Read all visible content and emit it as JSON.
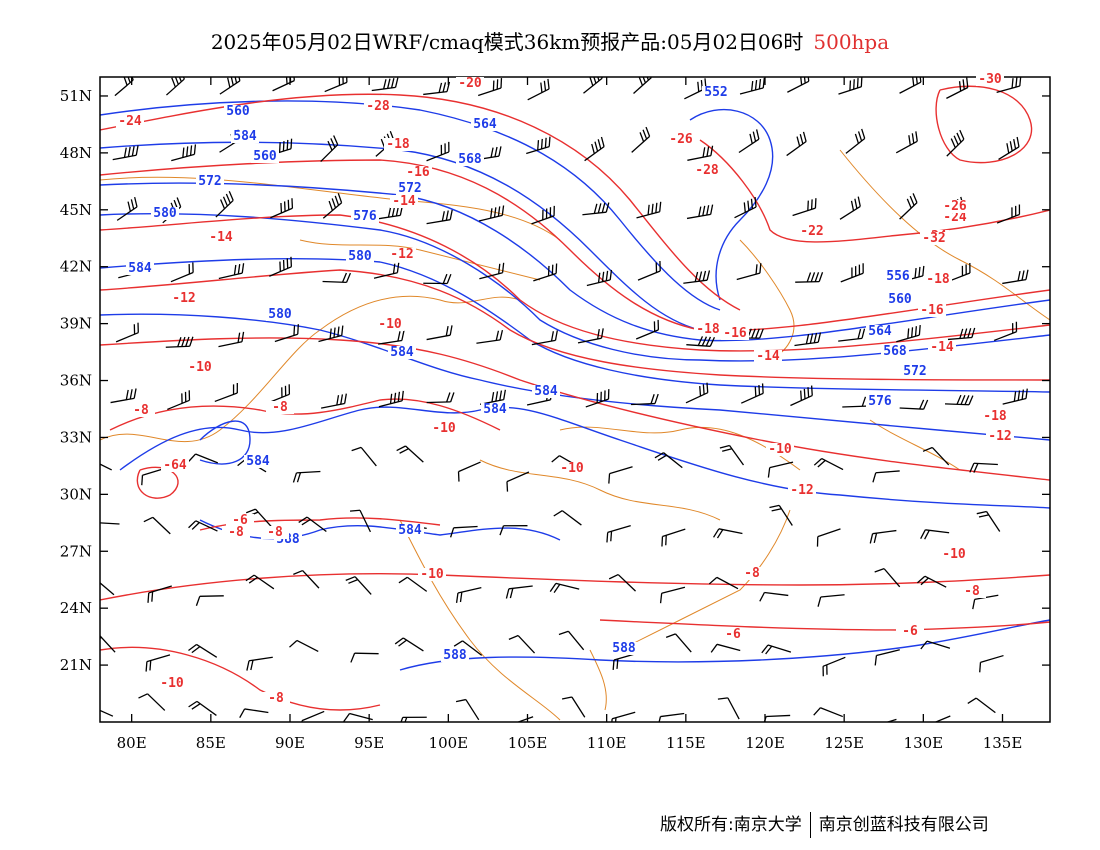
{
  "title": {
    "main": "2025年05月02日WRF/cmaq模式36km预报产品:05月02日06时",
    "level": "500hpa"
  },
  "footer": {
    "copyright": "版权所有:南京大学",
    "company": "南京创蓝科技有限公司"
  },
  "colors": {
    "height_contour": "#1e3ce8",
    "temperature_contour": "#e83030",
    "coastline_border": "#e0882a",
    "wind_barb": "#000000",
    "level_text": "#e03030"
  },
  "axes": {
    "lon_labels": [
      "80E",
      "85E",
      "90E",
      "95E",
      "100E",
      "105E",
      "110E",
      "115E",
      "120E",
      "125E",
      "130E",
      "135E"
    ],
    "lat_labels": [
      "51N",
      "48N",
      "45N",
      "42N",
      "39N",
      "36N",
      "33N",
      "30N",
      "27N",
      "24N",
      "21N"
    ],
    "lon_range": [
      78,
      138
    ],
    "lat_range": [
      18,
      52
    ]
  },
  "contour_labels": {
    "height": [
      "560",
      "584",
      "560",
      "552",
      "564",
      "568",
      "572",
      "572",
      "576",
      "580",
      "580",
      "584",
      "580",
      "584",
      "556",
      "560",
      "564",
      "568",
      "572",
      "576",
      "584",
      "584",
      "584",
      "584",
      "588",
      "588",
      "588"
    ],
    "temperature": [
      "-24",
      "-20",
      "-28",
      "-30",
      "-26",
      "-28",
      "-18",
      "-16",
      "-14",
      "-12",
      "-14",
      "-12",
      "-10",
      "-10",
      "-24",
      "-26",
      "-24",
      "-22",
      "-32",
      "-18",
      "-16",
      "-14",
      "-14",
      "-16",
      "-18",
      "-10",
      "-8",
      "-8",
      "-10",
      "-64",
      "-6",
      "-8",
      "-10",
      "-12",
      "-10",
      "-10",
      "-8",
      "-8",
      "-6",
      "-6",
      "-8",
      "-10",
      "-8",
      "-18",
      "-12"
    ]
  }
}
